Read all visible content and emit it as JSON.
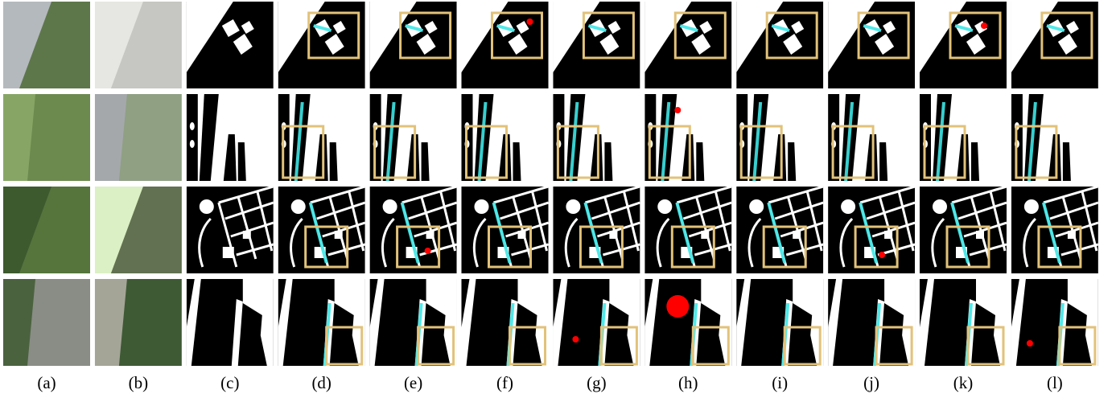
{
  "column_labels": [
    "(a)",
    "(b)",
    "(c)",
    "(d)",
    "(e)",
    "(f)",
    "(g)",
    "(h)",
    "(i)",
    "(j)",
    "(k)",
    "(l)"
  ]
}
